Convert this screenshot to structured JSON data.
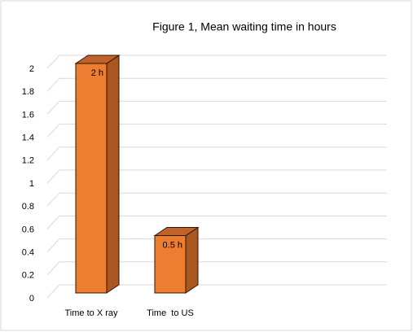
{
  "chart_data": {
    "type": "bar3d",
    "title": "Figure 1, Mean waiting time in hours",
    "categories": [
      "Time to X ray",
      "Time  to US"
    ],
    "values": [
      2,
      0.5
    ],
    "value_labels": [
      "2 h",
      "0.5 h"
    ],
    "color": "#ed7d31",
    "ylim": [
      0,
      2
    ],
    "yticks": [
      0,
      0.2,
      0.4,
      0.6,
      0.8,
      1,
      1.2,
      1.4,
      1.6,
      1.8,
      2
    ],
    "grid": true
  }
}
